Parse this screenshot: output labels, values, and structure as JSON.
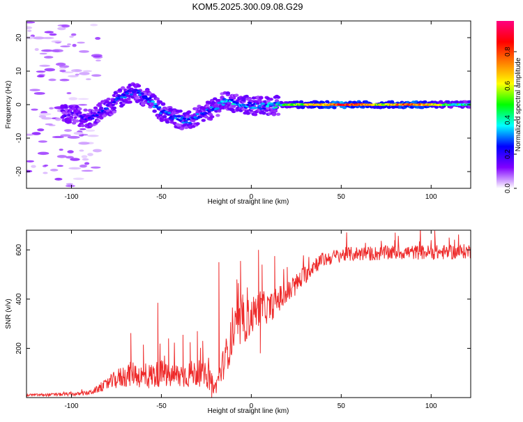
{
  "title": "KOM5.2025.300.09.08.G29",
  "chart_data": [
    {
      "type": "heatmap",
      "xlabel": "Height of straight line (km)",
      "ylabel": "Frequency (Hz)",
      "xlim": [
        -125,
        122
      ],
      "ylim": [
        -25,
        25
      ],
      "xticks": [
        -100,
        -50,
        0,
        50,
        100
      ],
      "yticks": [
        -20,
        -10,
        0,
        10,
        20
      ],
      "colorbar": {
        "label": "Normalized spectral amplitude",
        "range": [
          0,
          0.98
        ],
        "ticks": [
          "0.0",
          "0.2",
          "0.4",
          "0.6",
          "0.8"
        ],
        "colormap": [
          "#ffffff",
          "#8000ff",
          "#0000ff",
          "#00ffff",
          "#00ff00",
          "#ffff00",
          "#ff8000",
          "#ff0000",
          "#ff0080"
        ]
      },
      "ridge": [
        {
          "x": -100,
          "freq": -3,
          "amp": 0.1
        },
        {
          "x": -90,
          "freq": -4,
          "amp": 0.15
        },
        {
          "x": -80,
          "freq": -1,
          "amp": 0.2
        },
        {
          "x": -70,
          "freq": 3,
          "amp": 0.25
        },
        {
          "x": -65,
          "freq": 4,
          "amp": 0.25
        },
        {
          "x": -58,
          "freq": 2,
          "amp": 0.3
        },
        {
          "x": -50,
          "freq": -2,
          "amp": 0.25
        },
        {
          "x": -42,
          "freq": -4,
          "amp": 0.25
        },
        {
          "x": -35,
          "freq": -5,
          "amp": 0.25
        },
        {
          "x": -28,
          "freq": -3,
          "amp": 0.25
        },
        {
          "x": -20,
          "freq": -1,
          "amp": 0.25
        },
        {
          "x": -15,
          "freq": 1,
          "amp": 0.35
        },
        {
          "x": -5,
          "freq": 0,
          "amp": 0.3
        },
        {
          "x": 5,
          "freq": -0.5,
          "amp": 0.25
        },
        {
          "x": 20,
          "freq": 0,
          "amp": 0.45
        },
        {
          "x": 30,
          "freq": 0,
          "amp": 0.6
        },
        {
          "x": 40,
          "freq": 0,
          "amp": 0.7
        },
        {
          "x": 50,
          "freq": 0,
          "amp": 0.9
        },
        {
          "x": 60,
          "freq": 0,
          "amp": 0.75
        },
        {
          "x": 70,
          "freq": 0,
          "amp": 0.6
        },
        {
          "x": 80,
          "freq": 0,
          "amp": 0.7
        },
        {
          "x": 90,
          "freq": 0,
          "amp": 0.8
        },
        {
          "x": 100,
          "freq": 0,
          "amp": 0.65
        },
        {
          "x": 110,
          "freq": 0,
          "amp": 0.45
        },
        {
          "x": 122,
          "freq": 0,
          "amp": 0.4
        }
      ]
    },
    {
      "type": "line",
      "xlabel": "Height of straight line (km)",
      "ylabel": "SNR (v/v)",
      "xlim": [
        -125,
        122
      ],
      "ylim": [
        0,
        680
      ],
      "xticks": [
        -100,
        -50,
        0,
        50,
        100
      ],
      "yticks": [
        200,
        400,
        600
      ],
      "color": "#ee2a2a",
      "x": [
        -125,
        -110,
        -95,
        -90,
        -85,
        -80,
        -75,
        -70,
        -65,
        -60,
        -55,
        -50,
        -45,
        -40,
        -35,
        -30,
        -25,
        -22,
        -20,
        -15,
        -10,
        -5,
        0,
        5,
        10,
        15,
        20,
        25,
        30,
        35,
        40,
        50,
        60,
        70,
        80,
        90,
        100,
        110,
        122
      ],
      "mean": [
        10,
        12,
        15,
        20,
        35,
        55,
        75,
        90,
        100,
        80,
        90,
        100,
        85,
        90,
        95,
        100,
        90,
        60,
        40,
        150,
        260,
        300,
        330,
        370,
        360,
        400,
        420,
        460,
        500,
        540,
        560,
        580,
        585,
        585,
        590,
        590,
        590,
        590,
        595
      ],
      "noise": [
        5,
        6,
        8,
        10,
        15,
        25,
        40,
        50,
        50,
        50,
        55,
        55,
        50,
        55,
        55,
        55,
        50,
        40,
        30,
        70,
        90,
        90,
        80,
        70,
        60,
        55,
        50,
        45,
        40,
        35,
        30,
        30,
        30,
        30,
        30,
        30,
        30,
        30,
        30
      ],
      "spikes": [
        {
          "x": -67,
          "y": 262
        },
        {
          "x": -60,
          "y": 215
        },
        {
          "x": -52,
          "y": 385
        },
        {
          "x": -46,
          "y": 240
        },
        {
          "x": -38,
          "y": 255
        },
        {
          "x": -34,
          "y": 225
        },
        {
          "x": -30,
          "y": 270
        },
        {
          "x": -27,
          "y": 230
        },
        {
          "x": -18,
          "y": 550
        },
        {
          "x": -8,
          "y": 480
        },
        {
          "x": -6,
          "y": 555
        },
        {
          "x": 4,
          "y": 600
        },
        {
          "x": 6,
          "y": 540
        },
        {
          "x": 13,
          "y": 575
        },
        {
          "x": 20,
          "y": 530
        },
        {
          "x": 80,
          "y": 670
        },
        {
          "x": 102,
          "y": 678
        },
        {
          "x": 110,
          "y": 650
        }
      ],
      "dips": [
        {
          "x": -22,
          "y": 0
        },
        {
          "x": 5,
          "y": 180
        },
        {
          "x": 27,
          "y": 470
        }
      ]
    }
  ]
}
